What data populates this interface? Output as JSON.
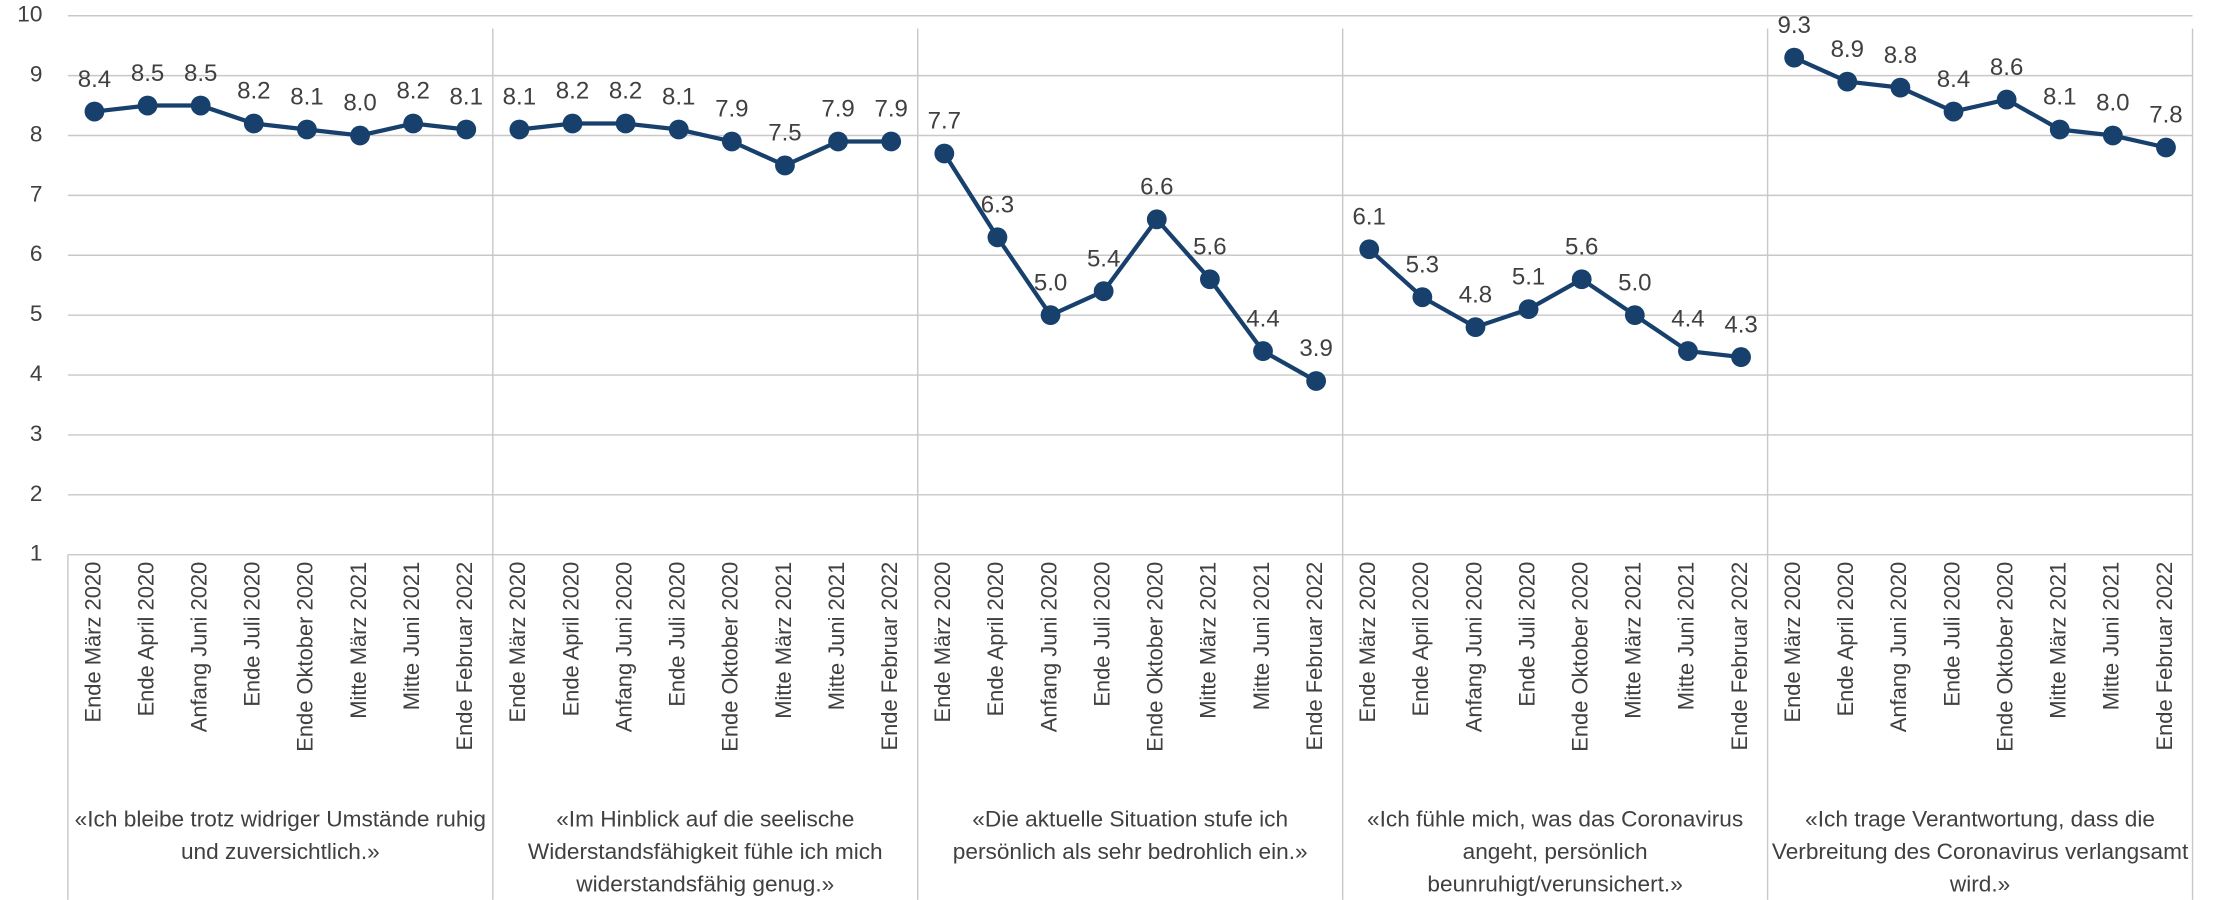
{
  "chart_data": {
    "type": "line",
    "color": "#17406d",
    "ylim": [
      1,
      10
    ],
    "yticks": [
      1,
      2,
      3,
      4,
      5,
      6,
      7,
      8,
      9,
      10
    ],
    "grid": true,
    "groups": [
      {
        "name": "«Ich bleibe trotz widriger Umstände ruhig und zuversichtlich.»",
        "categories": [
          "Ende März 2020",
          "Ende April 2020",
          "Anfang Juni 2020",
          "Ende Juli 2020",
          "Ende Oktober 2020",
          "Mitte März 2021",
          "Mitte Juni 2021",
          "Ende Februar 2022"
        ],
        "values": [
          8.4,
          8.5,
          8.5,
          8.2,
          8.1,
          8.0,
          8.2,
          8.1
        ],
        "value_labels": [
          "8.4",
          "8.5",
          "8.5",
          "8.2",
          "8.1",
          "8.0",
          "8.2",
          "8.1"
        ]
      },
      {
        "name": "«Im Hinblick auf die seelische Widerstandsfähigkeit fühle ich mich widerstandsfähig genug.»",
        "categories": [
          "Ende März 2020",
          "Ende April 2020",
          "Anfang Juni 2020",
          "Ende Juli 2020",
          "Ende Oktober 2020",
          "Mitte März 2021",
          "Mitte Juni 2021",
          "Ende Februar 2022"
        ],
        "values": [
          8.1,
          8.2,
          8.2,
          8.1,
          7.9,
          7.5,
          7.9,
          7.9
        ],
        "value_labels": [
          "8.1",
          "8.2",
          "8.2",
          "8.1",
          "7.9",
          "7.5",
          "7.9",
          "7.9"
        ]
      },
      {
        "name": "«Die aktuelle Situation stufe ich persönlich als sehr bedrohlich ein.»",
        "categories": [
          "Ende März 2020",
          "Ende April 2020",
          "Anfang Juni 2020",
          "Ende Juli 2020",
          "Ende Oktober 2020",
          "Mitte März 2021",
          "Mitte Juni 2021",
          "Ende Februar 2022"
        ],
        "values": [
          7.7,
          6.3,
          5.0,
          5.4,
          6.6,
          5.6,
          4.4,
          3.9
        ],
        "value_labels": [
          "7.7",
          "6.3",
          "5.0",
          "5.4",
          "6.6",
          "5.6",
          "4.4",
          "3.9"
        ]
      },
      {
        "name": "«Ich fühle mich, was das Coronavirus angeht, persönlich beunruhigt/verunsichert.»",
        "categories": [
          "Ende März 2020",
          "Ende April 2020",
          "Anfang Juni 2020",
          "Ende Juli 2020",
          "Ende Oktober 2020",
          "Mitte März 2021",
          "Mitte Juni 2021",
          "Ende Februar 2022"
        ],
        "values": [
          6.1,
          5.3,
          4.8,
          5.1,
          5.6,
          5.0,
          4.4,
          4.3
        ],
        "value_labels": [
          "6.1",
          "5.3",
          "4.8",
          "5.1",
          "5.6",
          "5.0",
          "4.4",
          "4.3"
        ]
      },
      {
        "name": "«Ich trage Verantwortung, dass die Verbreitung des Coronavirus verlangsamt wird.»",
        "categories": [
          "Ende März 2020",
          "Ende April 2020",
          "Anfang Juni 2020",
          "Ende Juli 2020",
          "Ende Oktober 2020",
          "Mitte März 2021",
          "Mitte Juni 2021",
          "Ende Februar 2022"
        ],
        "values": [
          9.3,
          8.9,
          8.8,
          8.4,
          8.6,
          8.1,
          8.0,
          7.8
        ],
        "value_labels": [
          "9.3",
          "8.9",
          "8.8",
          "8.4",
          "8.6",
          "8.1",
          "8.0",
          "7.8"
        ]
      }
    ]
  }
}
